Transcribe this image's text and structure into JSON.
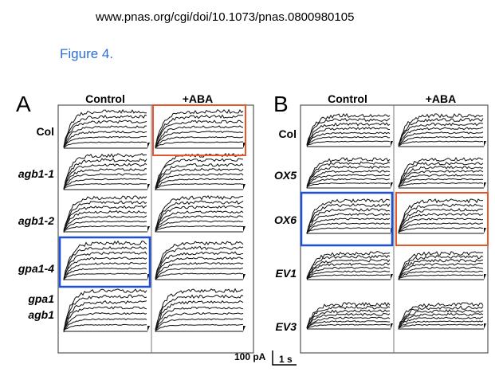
{
  "header": {
    "url": "www.pnas.org/cgi/doi/10.1073/pnas.0800980105",
    "figure_label": "Figure 4."
  },
  "panels": [
    {
      "label": "A",
      "columns": [
        "Control",
        "+ABA"
      ],
      "rows": [
        [
          "Col"
        ],
        [
          "agb1-1"
        ],
        [
          "agb1-2"
        ],
        [
          "gpa1-4"
        ],
        [
          "gpa1",
          "agb1"
        ]
      ]
    },
    {
      "label": "B",
      "columns": [
        "Control",
        "+ABA"
      ],
      "rows": [
        [
          "Col"
        ],
        [
          "OX5"
        ],
        [
          "OX6"
        ],
        [
          "EV1"
        ],
        [
          "EV3"
        ]
      ]
    }
  ],
  "scale_bar": {
    "current": "100 pA",
    "time": "1 s"
  }
}
